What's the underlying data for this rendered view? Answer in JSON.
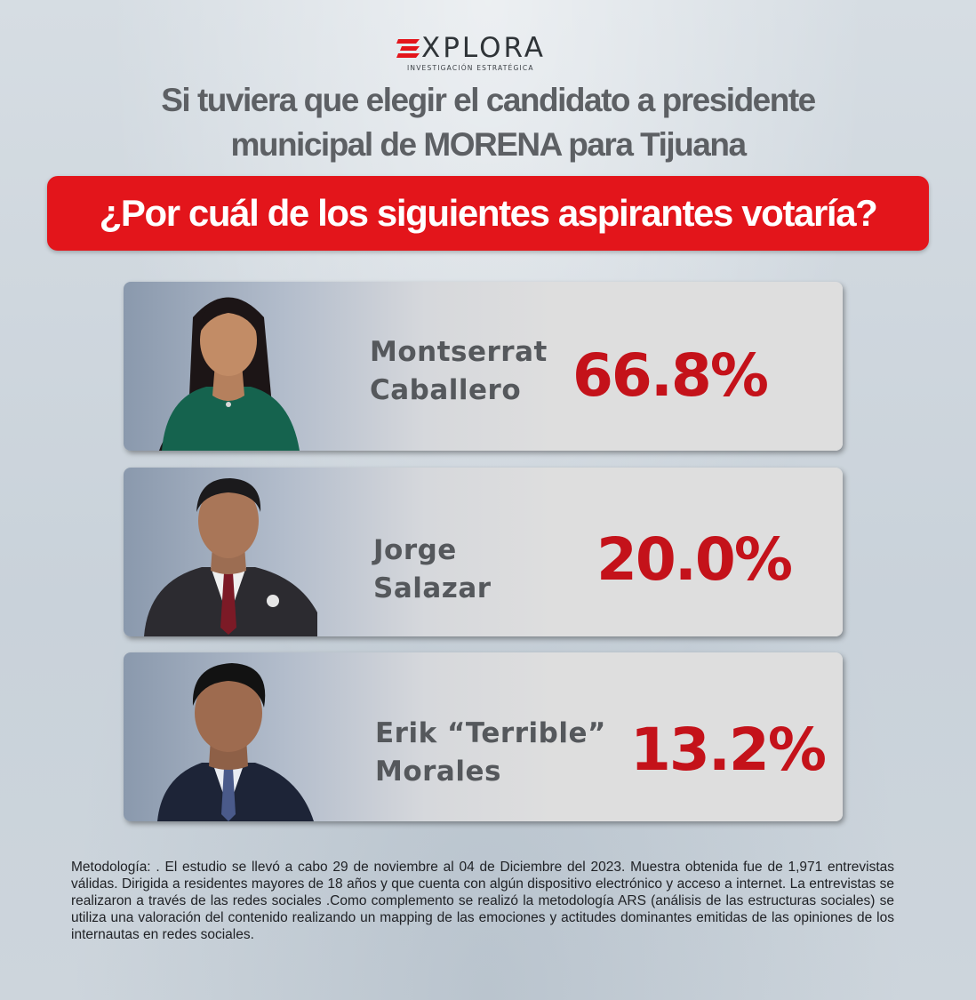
{
  "brand": {
    "name": "XPLORA",
    "subtitle": "INVESTIGACIÓN ESTRATÉGICA",
    "color": "#e3151b"
  },
  "title_line1": "Si tuviera que elegir el candidato a presidente",
  "title_line2": "municipal de MORENA para Tijuana",
  "question": "¿Por cuál de los siguientes aspirantes votaría?",
  "candidates": [
    {
      "name_line1": "Montserrat",
      "name_line2": "Caballero",
      "percent": "66.8%",
      "value": 66.8
    },
    {
      "name_line1": "Jorge",
      "name_line2": "Salazar",
      "percent": "20.0%",
      "value": 20.0
    },
    {
      "name_line1": "Erik “Terrible”",
      "name_line2": "Morales",
      "percent": "13.2%",
      "value": 13.2
    }
  ],
  "methodology": "Metodología: . El estudio se llevó a cabo 29 de noviembre al 04 de Diciembre del 2023. Muestra obtenida fue de 1,971 entrevistas válidas. Dirigida a residentes mayores de 18 años y que cuenta con algún dispositivo electrónico y acceso a internet. La entrevistas se realizaron a través de las redes sociales .Como complemento se realizó la metodología ARS (análisis de las estructuras sociales) se utiliza una valoración del contenido realizando un mapping de las emociones y actitudes dominantes emitidas de las opiniones de los internautas en redes sociales."
}
